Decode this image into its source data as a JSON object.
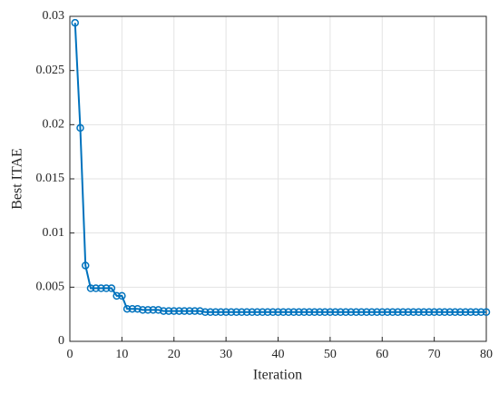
{
  "chart_data": {
    "type": "line",
    "xlabel": "Iteration",
    "ylabel": "Best ITAE",
    "x": [
      1,
      2,
      3,
      4,
      5,
      6,
      7,
      8,
      9,
      10,
      11,
      12,
      13,
      14,
      15,
      16,
      17,
      18,
      19,
      20,
      21,
      22,
      23,
      24,
      25,
      26,
      27,
      28,
      29,
      30,
      31,
      32,
      33,
      34,
      35,
      36,
      37,
      38,
      39,
      40,
      41,
      42,
      43,
      44,
      45,
      46,
      47,
      48,
      49,
      50,
      51,
      52,
      53,
      54,
      55,
      56,
      57,
      58,
      59,
      60,
      61,
      62,
      63,
      64,
      65,
      66,
      67,
      68,
      69,
      70,
      71,
      72,
      73,
      74,
      75,
      76,
      77,
      78,
      79,
      80
    ],
    "values": [
      0.0294,
      0.0197,
      0.007,
      0.0049,
      0.0049,
      0.0049,
      0.0049,
      0.0049,
      0.0042,
      0.0042,
      0.003,
      0.003,
      0.003,
      0.0029,
      0.0029,
      0.0029,
      0.0029,
      0.0028,
      0.0028,
      0.0028,
      0.0028,
      0.0028,
      0.0028,
      0.0028,
      0.0028,
      0.0027,
      0.0027,
      0.0027,
      0.0027,
      0.0027,
      0.0027,
      0.0027,
      0.0027,
      0.0027,
      0.0027,
      0.0027,
      0.0027,
      0.0027,
      0.0027,
      0.0027,
      0.0027,
      0.0027,
      0.0027,
      0.0027,
      0.0027,
      0.0027,
      0.0027,
      0.0027,
      0.0027,
      0.0027,
      0.0027,
      0.0027,
      0.0027,
      0.0027,
      0.0027,
      0.0027,
      0.0027,
      0.0027,
      0.0027,
      0.0027,
      0.0027,
      0.0027,
      0.0027,
      0.0027,
      0.0027,
      0.0027,
      0.0027,
      0.0027,
      0.0027,
      0.0027,
      0.0027,
      0.0027,
      0.0027,
      0.0027,
      0.0027,
      0.0027,
      0.0027,
      0.0027,
      0.0027,
      0.0027
    ],
    "color": "#0072bd",
    "xlim": [
      0,
      80
    ],
    "xticks": [
      0,
      10,
      20,
      30,
      40,
      50,
      60,
      70,
      80
    ],
    "ylim": [
      0,
      0.03
    ],
    "yticks": [
      0,
      0.005,
      0.01,
      0.015,
      0.02,
      0.025,
      0.03
    ],
    "grid": true
  }
}
